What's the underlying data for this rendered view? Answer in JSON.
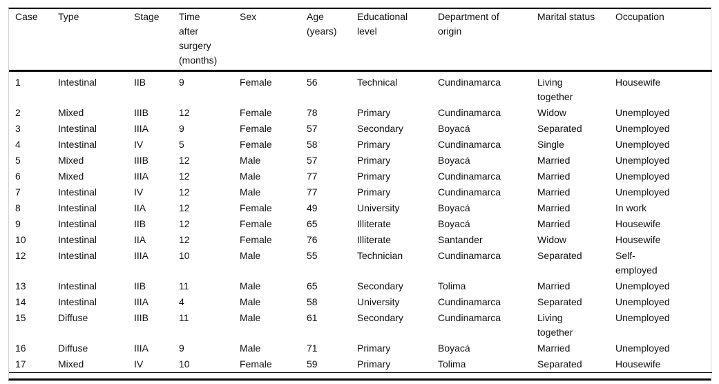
{
  "table": {
    "headers": [
      "Case",
      "Type",
      "Stage",
      "Time after surgery (months)",
      "Sex",
      "Age (years)",
      "Educational level",
      "Department of origin",
      "Marital status",
      "Occupation"
    ],
    "rows": [
      [
        "1",
        "Intestinal",
        "IIB",
        "9",
        "Female",
        "56",
        "Technical",
        "Cundinamarca",
        "Living together",
        "Housewife"
      ],
      [
        "2",
        "Mixed",
        "IIIB",
        "12",
        "Female",
        "78",
        "Primary",
        "Cundinamarca",
        "Widow",
        "Unemployed"
      ],
      [
        "3",
        "Intestinal",
        "IIIA",
        "9",
        "Female",
        "57",
        "Secondary",
        "Boyacá",
        "Separated",
        "Unemployed"
      ],
      [
        "4",
        "Intestinal",
        "IV",
        "5",
        "Female",
        "58",
        "Primary",
        "Cundinamarca",
        "Single",
        "Unemployed"
      ],
      [
        "5",
        "Mixed",
        "IIIB",
        "12",
        "Male",
        "57",
        "Primary",
        "Boyacá",
        "Married",
        "Unemployed"
      ],
      [
        "6",
        "Mixed",
        "IIIA",
        "12",
        "Male",
        "77",
        "Primary",
        "Cundinamarca",
        "Married",
        "Unemployed"
      ],
      [
        "7",
        "Intestinal",
        "IV",
        "12",
        "Male",
        "77",
        "Primary",
        "Cundinamarca",
        "Married",
        "Unemployed"
      ],
      [
        "8",
        "Intestinal",
        "IIA",
        "12",
        "Female",
        "49",
        "University",
        "Boyacá",
        "Married",
        "In work"
      ],
      [
        "9",
        "Intestinal",
        "IIB",
        "12",
        "Female",
        "65",
        "Illiterate",
        "Boyacá",
        "Married",
        "Housewife"
      ],
      [
        "10",
        "Intestinal",
        "IIA",
        "12",
        "Female",
        "76",
        "Illiterate",
        "Santander",
        "Widow",
        "Housewife"
      ],
      [
        "12",
        "Intestinal",
        "IIIA",
        "10",
        "Male",
        "55",
        "Technician",
        "Cundinamarca",
        "Separated",
        "Self-employed"
      ],
      [
        "13",
        "Intestinal",
        "IIB",
        "11",
        "Male",
        "65",
        "Secondary",
        "Tolima",
        "Married",
        "Unemployed"
      ],
      [
        "14",
        "Intestinal",
        "IIIA",
        "4",
        "Male",
        "58",
        "University",
        "Cundinamarca",
        "Separated",
        "Unemployed"
      ],
      [
        "15",
        "Diffuse",
        "IIIB",
        "11",
        "Male",
        "61",
        "Secondary",
        "Cundinamarca",
        "Living together",
        "Unemployed"
      ],
      [
        "16",
        "Diffuse",
        "IIIA",
        "9",
        "Male",
        "71",
        "Primary",
        "Boyacá",
        "Married",
        "Unemployed"
      ],
      [
        "17",
        "Mixed",
        "IV",
        "10",
        "Female",
        "59",
        "Primary",
        "Tolima",
        "Separated",
        "Housewife"
      ]
    ]
  },
  "colors": {
    "horizontal_rule": "#0a0a0a",
    "vertical_rule": "#d4d4d4",
    "text": "#111111",
    "background": "#ffffff"
  }
}
